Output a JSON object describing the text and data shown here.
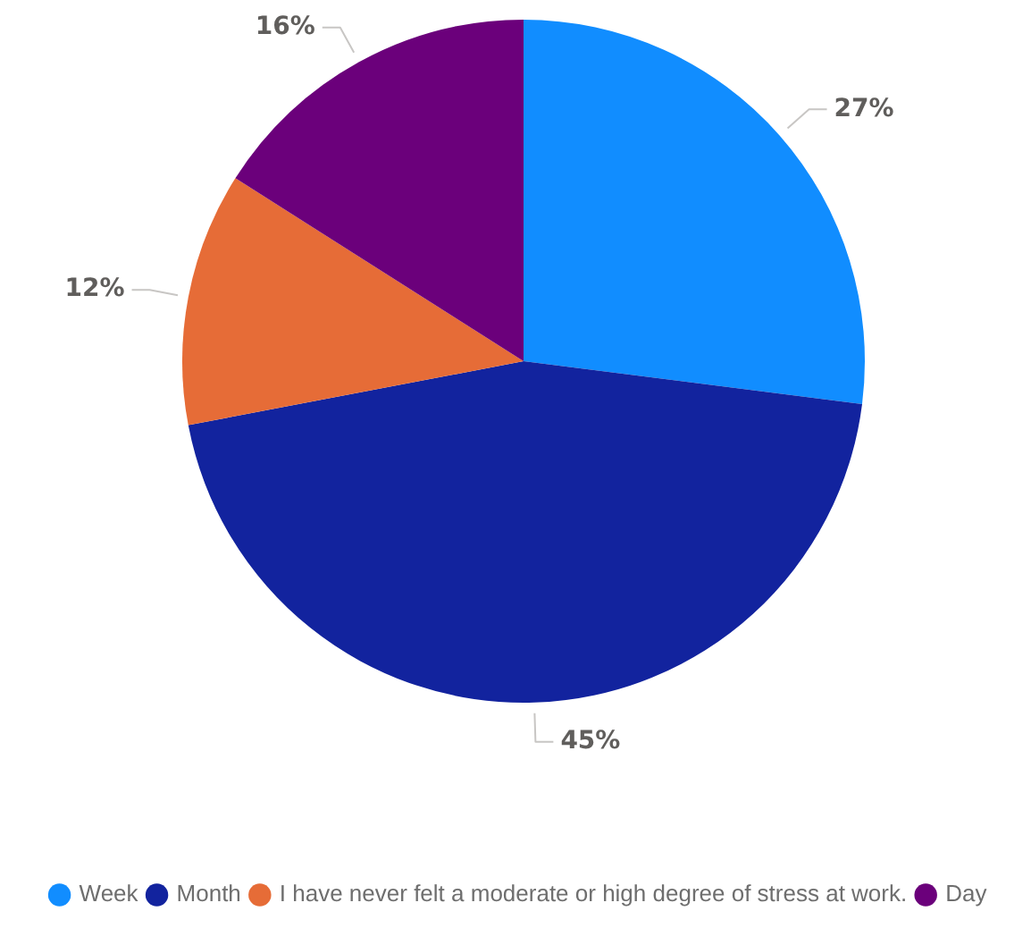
{
  "chart_data": {
    "type": "pie",
    "categories": [
      "Week",
      "Month",
      "I have never felt a moderate or high degree of stress at work.",
      "Day"
    ],
    "values": [
      27,
      45,
      12,
      16
    ],
    "colors": [
      "#118dff",
      "#12239e",
      "#e66c37",
      "#6b007b"
    ],
    "value_labels": [
      "27%",
      "45%",
      "12%",
      "16%"
    ],
    "legend": "bottom"
  }
}
